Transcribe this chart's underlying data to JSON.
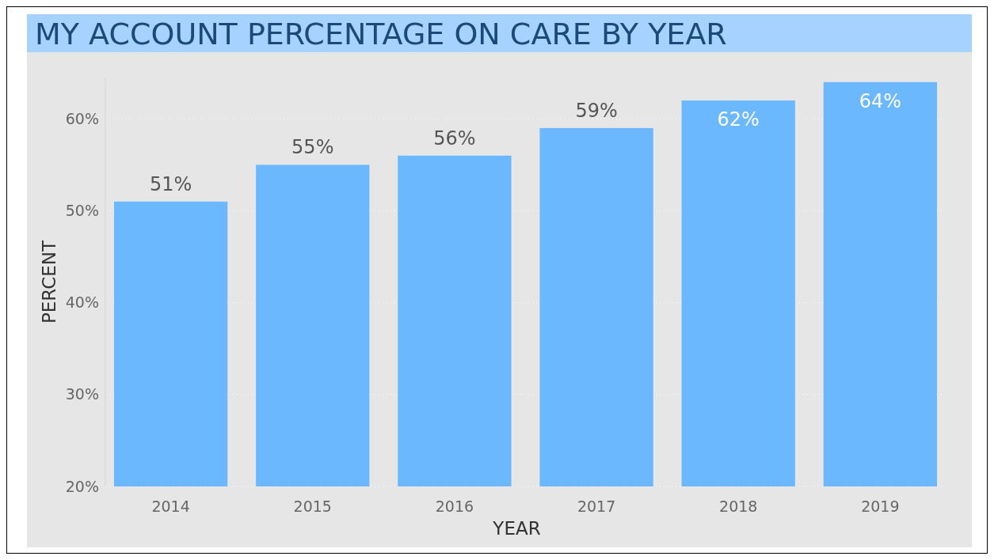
{
  "chart_data": {
    "type": "bar",
    "title": "MY ACCOUNT PERCENTAGE ON CARE BY YEAR",
    "xlabel": "YEAR",
    "ylabel": "PERCENT",
    "categories": [
      "2014",
      "2015",
      "2016",
      "2017",
      "2018",
      "2019"
    ],
    "values": [
      51,
      55,
      56,
      59,
      62,
      64
    ],
    "value_labels": [
      "51%",
      "55%",
      "56%",
      "59%",
      "62%",
      "64%"
    ],
    "color": "#6cb8ff",
    "ylim": [
      20,
      64.5
    ],
    "yticks": [
      {
        "value": 20,
        "label": "20%"
      },
      {
        "value": 30,
        "label": "30%"
      },
      {
        "value": 40,
        "label": "40%"
      },
      {
        "value": 50,
        "label": "50%"
      },
      {
        "value": 60,
        "label": "60%"
      }
    ],
    "grid": "y"
  }
}
